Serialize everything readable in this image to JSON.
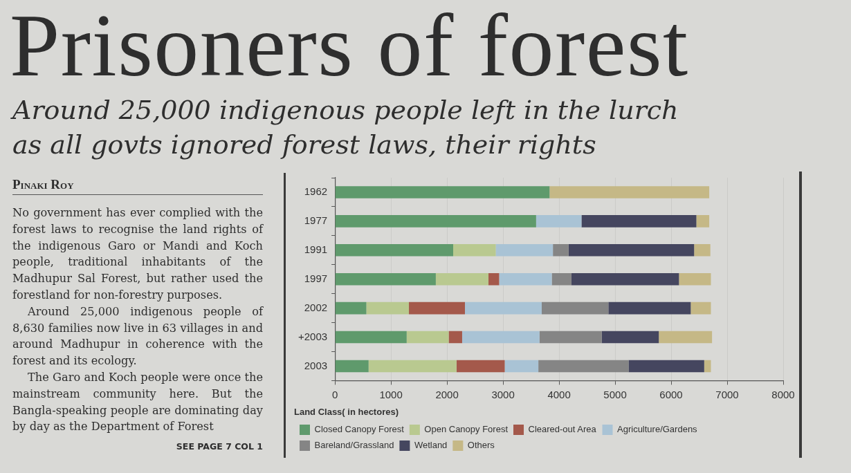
{
  "chart_data": {
    "type": "bar",
    "orientation": "horizontal",
    "stacked": true,
    "title": "Prisoners of forest",
    "subtitle": "Around 25,000 indigenous people left in the lurch as all govts ignored forest laws, their rights",
    "annotations": [
      "Pinaki Roy",
      "No government has ever complied with the forest laws to recognise the land rights of the indigenous Garo or Mandi and Koch people, traditional inhabitants of the Madhupur Sal Forest, but rather used the forestland for non-forestry purposes.",
      "Around 25,000 indigenous people of 8,630 families now live in 63 villages in and around Madhupur in coherence with the forest and its ecology.",
      "The Garo and Koch people were once the mainstream community here. But the Bangla-speaking people are dominating day by day as the Department of Forest",
      "SEE PAGE 7 COL 1"
    ],
    "legend_title": "Land Class( in hectores)",
    "categories": [
      "1962",
      "1977",
      "1991",
      "1997",
      "2002",
      "+2003",
      "2003"
    ],
    "series": [
      {
        "name": "Closed Canopy Forest",
        "color": "#5f9a6c",
        "values": [
          3830,
          3590,
          2110,
          1800,
          560,
          1280,
          600
        ]
      },
      {
        "name": "Open Canopy Forest",
        "color": "#b9c990",
        "values": [
          null,
          null,
          760,
          940,
          760,
          750,
          1570
        ]
      },
      {
        "name": "Cleared-out Area",
        "color": "#a4594b",
        "values": [
          null,
          null,
          null,
          190,
          1000,
          240,
          860
        ]
      },
      {
        "name": "Agriculture/Gardens",
        "color": "#a9c3d5",
        "values": [
          null,
          810,
          1020,
          940,
          1370,
          1380,
          600
        ]
      },
      {
        "name": "Bareland/Grassland",
        "color": "#858585",
        "values": [
          null,
          null,
          280,
          350,
          1190,
          1110,
          1610
        ]
      },
      {
        "name": "Wetland",
        "color": "#45465f",
        "values": [
          null,
          2050,
          2240,
          1920,
          1470,
          1020,
          1350
        ]
      },
      {
        "name": "Others",
        "color": "#c5b886",
        "values": [
          2850,
          230,
          290,
          570,
          360,
          950,
          120
        ]
      }
    ],
    "xlim": [
      0,
      8000
    ],
    "xticks": [
      0,
      1000,
      2000,
      3000,
      4000,
      5000,
      6000,
      7000,
      8000
    ],
    "grid": "x",
    "legend": "bottom"
  }
}
